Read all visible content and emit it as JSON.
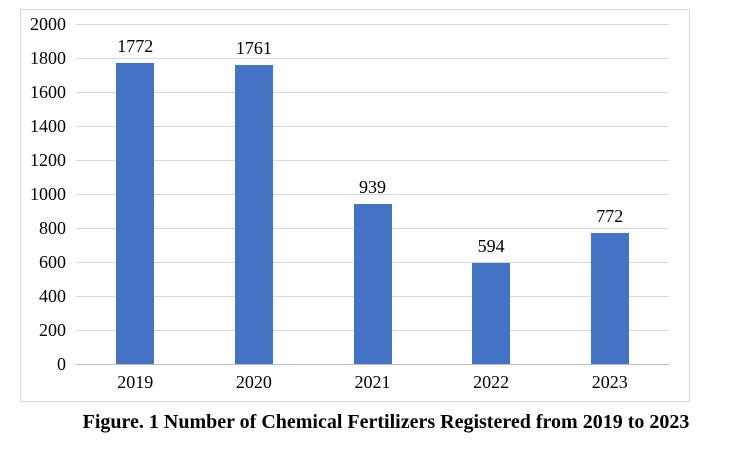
{
  "figure": {
    "caption": "Figure. 1 Number of Chemical Fertilizers Registered from 2019 to 2023"
  },
  "chart_data": {
    "type": "bar",
    "title": "",
    "xlabel": "",
    "ylabel": "",
    "categories": [
      "2019",
      "2020",
      "2021",
      "2022",
      "2023"
    ],
    "values": [
      1772,
      1761,
      939,
      594,
      772
    ],
    "data_labels": [
      "1772",
      "1761",
      "939",
      "594",
      "772"
    ],
    "ylim": [
      0,
      2000
    ],
    "ytick_step": 200,
    "yticks": [
      0,
      200,
      400,
      600,
      800,
      1000,
      1200,
      1400,
      1600,
      1800,
      2000
    ],
    "grid": true,
    "legend": "none",
    "colors": {
      "bar": "#4472c4",
      "gridline": "#d9d9d9",
      "axis_line": "#bfbfbf",
      "text": "#000000",
      "frame_border": "#d9d9d9",
      "background": "#ffffff"
    }
  }
}
